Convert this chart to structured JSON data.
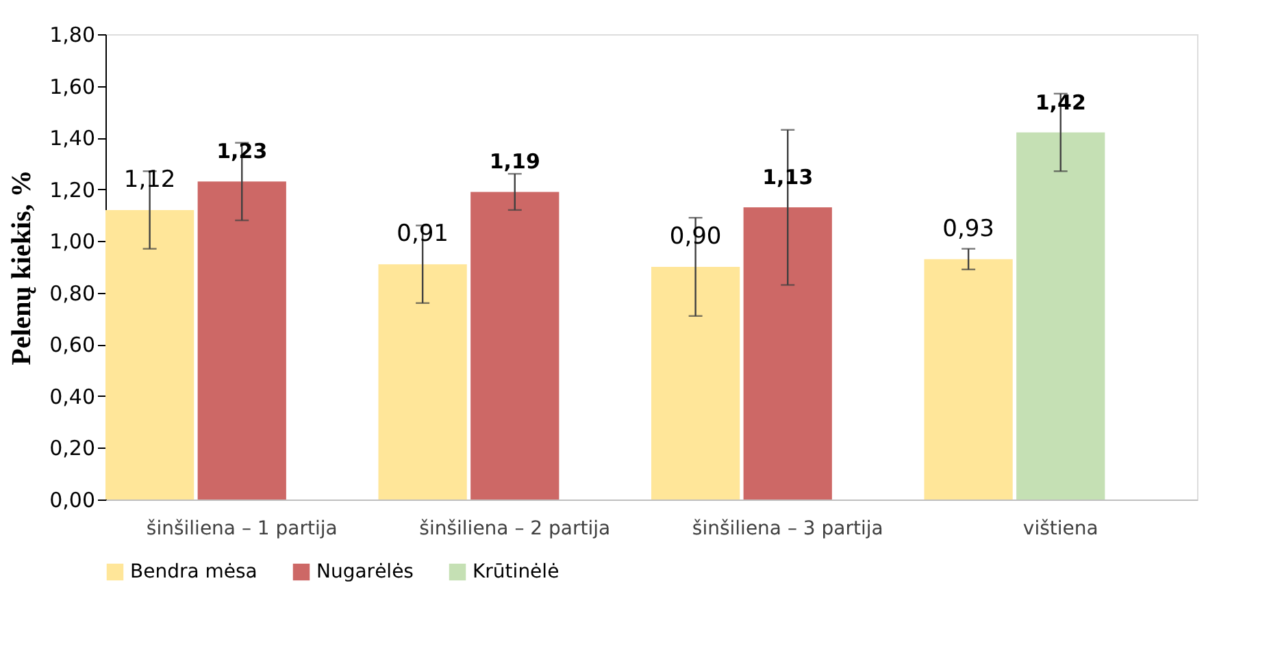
{
  "chart_data": {
    "type": "bar",
    "ylabel": "Pelenų kiekis, %",
    "categories": [
      "šinšiliena – 1 partija",
      "šinšiliena – 2 partija",
      "šinšiliena – 3 partija",
      "vištiena"
    ],
    "series": [
      {
        "name": "Bendra mėsa",
        "color": "#ffe699",
        "values": [
          1.12,
          0.91,
          0.9,
          0.93
        ],
        "errors": [
          0.15,
          0.15,
          0.19,
          0.04
        ],
        "value_labels": [
          "1,12",
          "0,91",
          "0,90",
          "0,93"
        ]
      },
      {
        "name": "Nugarėlės",
        "color": "#cd6866",
        "values": [
          1.23,
          1.19,
          1.13,
          null
        ],
        "errors": [
          0.15,
          0.07,
          0.3,
          null
        ],
        "value_labels": [
          "1,23",
          "1,19",
          "1,13",
          null
        ]
      },
      {
        "name": "Krūtinėlė",
        "color": "#c5e0b4",
        "values": [
          null,
          null,
          null,
          1.42
        ],
        "errors": [
          null,
          null,
          null,
          0.15
        ],
        "value_labels": [
          null,
          null,
          null,
          "1,42"
        ]
      }
    ],
    "ylim": [
      0,
      1.8
    ],
    "yticks": [
      {
        "value": 0,
        "label": "0,00"
      },
      {
        "value": 0.2,
        "label": "0,20"
      },
      {
        "value": 0.4,
        "label": "0,40"
      },
      {
        "value": 0.6,
        "label": "0,60"
      },
      {
        "value": 0.8,
        "label": "0,80"
      },
      {
        "value": 1.0,
        "label": "1,00"
      },
      {
        "value": 1.2,
        "label": "1,20"
      },
      {
        "value": 1.4,
        "label": "1,40"
      },
      {
        "value": 1.6,
        "label": "1,60"
      },
      {
        "value": 1.8,
        "label": "1,80"
      }
    ],
    "grid": false,
    "legend": "bottom"
  }
}
